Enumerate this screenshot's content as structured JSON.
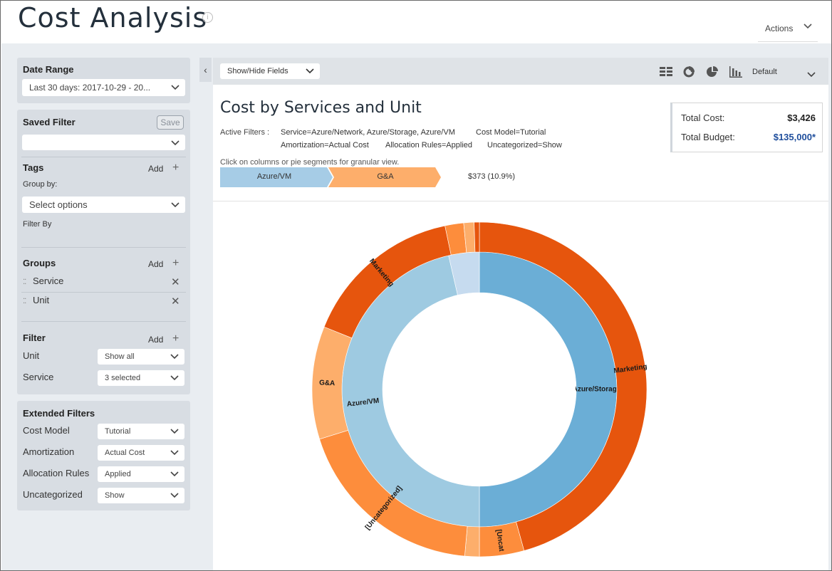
{
  "header": {
    "title": "Cost Analysis",
    "info_icon": "info-icon",
    "actions_label": "Actions"
  },
  "sidebar": {
    "date_range": {
      "title": "Date Range",
      "value": "Last 30 days:  2017-10-29 - 20..."
    },
    "saved_filter": {
      "title": "Saved Filter",
      "save_label": "Save",
      "value": ""
    },
    "tags": {
      "title": "Tags",
      "add_label": "Add",
      "group_by_label": "Group by:",
      "group_by_placeholder": "Select options",
      "filter_by_label": "Filter By"
    },
    "groups": {
      "title": "Groups",
      "add_label": "Add",
      "items": [
        "Service",
        "Unit"
      ]
    },
    "filter": {
      "title": "Filter",
      "add_label": "Add",
      "rows": [
        {
          "label": "Unit",
          "value": "Show all"
        },
        {
          "label": "Service",
          "value": "3 selected"
        }
      ]
    },
    "extended_filters": {
      "title": "Extended Filters",
      "rows": [
        {
          "label": "Cost Model",
          "value": "Tutorial"
        },
        {
          "label": "Amortization",
          "value": "Actual Cost"
        },
        {
          "label": "Allocation Rules",
          "value": "Applied"
        },
        {
          "label": "Uncategorized",
          "value": "Show"
        }
      ]
    }
  },
  "toolbar": {
    "show_hide_label": "Show/Hide Fields",
    "view_label": "Default",
    "icons": [
      "grid-icon",
      "donut-chart-icon",
      "pie-chart-icon",
      "bar-chart-icon"
    ]
  },
  "main": {
    "title": "Cost by Services and Unit",
    "active_filters_label": "Active Filters :",
    "active_filters": [
      "Service=Azure/Network, Azure/Storage, Azure/VM",
      "Cost Model=Tutorial",
      "Amortization=Actual Cost",
      "Allocation Rules=Applied",
      "Uncategorized=Show"
    ],
    "hint": "Click on columns or pie segments for granular view.",
    "breadcrumb": [
      "Azure/VM",
      "G&A"
    ],
    "breadcrumb_value": "$373 (10.9%)",
    "total_cost_label": "Total Cost:",
    "total_cost": "$3,426",
    "total_budget_label": "Total Budget:",
    "total_budget": "$135,000*"
  },
  "colors": {
    "accent_blue": "#1f4e9c",
    "crumb_blue": "#a6cce6",
    "crumb_orange": "#fdae6b",
    "sidebar_bg": "#e9edf1",
    "card_bg": "#d8dde3"
  },
  "chart_data": {
    "type": "sunburst",
    "title": "Cost by Services and Unit",
    "center": "",
    "inner_ring": {
      "name": "Service",
      "segments": [
        {
          "label": "Azure/Storage",
          "share": 0.5,
          "color": "#6baed6"
        },
        {
          "label": "Azure/VM",
          "share": 0.464,
          "color": "#9ecae1"
        },
        {
          "label": "",
          "share": 0.036,
          "color": "#c6dbef"
        }
      ]
    },
    "outer_ring": {
      "name": "Unit",
      "segments": [
        {
          "label": "Marketing",
          "share": 0.457,
          "color": "#e6550d"
        },
        {
          "label": "[Uncat",
          "share": 0.043,
          "color": "#fd8d3c"
        },
        {
          "label": "",
          "share": 0.014,
          "color": "#fdae6b"
        },
        {
          "label": "[Uncategorized]",
          "share": 0.188,
          "color": "#fd8d3c"
        },
        {
          "label": "G&A",
          "share": 0.109,
          "color": "#fdae6b"
        },
        {
          "label": "Marketing",
          "share": 0.156,
          "color": "#e6550d"
        },
        {
          "label": "",
          "share": 0.018,
          "color": "#fd8d3c"
        },
        {
          "label": "",
          "share": 0.01,
          "color": "#fdae6b"
        },
        {
          "label": "",
          "share": 0.005,
          "color": "#e6550d"
        }
      ]
    }
  }
}
